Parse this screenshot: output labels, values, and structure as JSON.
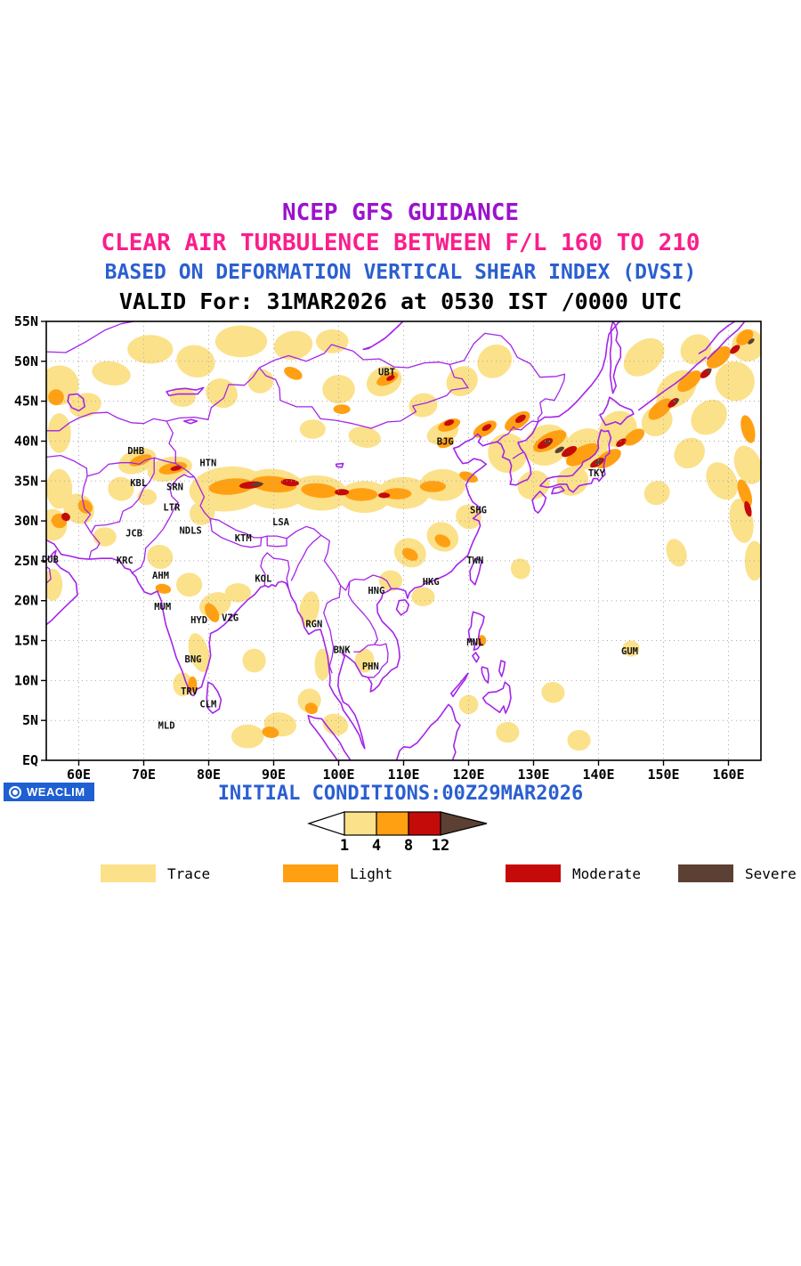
{
  "titles": {
    "line1": "NCEP GFS GUIDANCE",
    "line2": "CLEAR AIR TURBULENCE BETWEEN F/L 160 TO 210",
    "line3": "BASED ON DEFORMATION VERTICAL SHEAR INDEX (DVSI)",
    "line4": "VALID For: 31MAR2026 at 0530 IST /0000 UTC"
  },
  "footer": {
    "initial_conditions": "INITIAL CONDITIONS:00Z29MAR2026",
    "logo_text": "WEACLIM"
  },
  "colorbar": {
    "tick_labels": [
      "1",
      "4",
      "8",
      "12"
    ]
  },
  "legend": {
    "items": [
      {
        "label": "Trace",
        "color": "#FBE18A"
      },
      {
        "label": "Light",
        "color": "#FFA013"
      },
      {
        "label": "Moderate",
        "color": "#C50A0A"
      },
      {
        "label": "Severe",
        "color": "#5C4033"
      }
    ]
  },
  "colors": {
    "title1": "#9B12CC",
    "title2": "#FA1E8C",
    "title3": "#2B5FD0",
    "title4": "#000000",
    "footer_blue": "#2B5FD0",
    "logo_bg": "#1E5FD1"
  },
  "map": {
    "lon_range": [
      55,
      165
    ],
    "lat_range": [
      0,
      55
    ],
    "lon_tick_labels": [
      "60E",
      "70E",
      "80E",
      "90E",
      "100E",
      "110E",
      "120E",
      "130E",
      "140E",
      "150E",
      "160E"
    ],
    "lat_tick_labels": [
      "EQ",
      "5N",
      "10N",
      "15N",
      "20N",
      "25N",
      "30N",
      "35N",
      "40N",
      "45N",
      "50N",
      "55N"
    ],
    "colors": {
      "coastline": "#A425E8",
      "grid": "#aaaaaa",
      "trace": "#FBE18A",
      "light": "#FFA013",
      "moderate": "#C50A0A",
      "severe": "#5C4033"
    },
    "stations": [
      {
        "code": "UBT",
        "lon": 107.4,
        "lat": 48.6
      },
      {
        "code": "BJG",
        "lon": 116.4,
        "lat": 39.9
      },
      {
        "code": "TKY",
        "lon": 139.7,
        "lat": 35.9
      },
      {
        "code": "SHG",
        "lon": 121.5,
        "lat": 31.3
      },
      {
        "code": "TWN",
        "lon": 121.0,
        "lat": 25.0
      },
      {
        "code": "HKG",
        "lon": 114.2,
        "lat": 22.3
      },
      {
        "code": "HNG",
        "lon": 105.8,
        "lat": 21.2
      },
      {
        "code": "MNL",
        "lon": 121.0,
        "lat": 14.7
      },
      {
        "code": "GUM",
        "lon": 144.8,
        "lat": 13.6
      },
      {
        "code": "DHB",
        "lon": 68.8,
        "lat": 38.7
      },
      {
        "code": "HTN",
        "lon": 79.9,
        "lat": 37.2
      },
      {
        "code": "KBL",
        "lon": 69.2,
        "lat": 34.7
      },
      {
        "code": "SRN",
        "lon": 74.8,
        "lat": 34.2
      },
      {
        "code": "LTR",
        "lon": 74.3,
        "lat": 31.6
      },
      {
        "code": "JCB",
        "lon": 68.5,
        "lat": 28.4
      },
      {
        "code": "NDLS",
        "lon": 77.2,
        "lat": 28.7
      },
      {
        "code": "KTM",
        "lon": 85.3,
        "lat": 27.8
      },
      {
        "code": "LSA",
        "lon": 91.1,
        "lat": 29.8
      },
      {
        "code": "KRC",
        "lon": 67.1,
        "lat": 25.0
      },
      {
        "code": "AHM",
        "lon": 72.6,
        "lat": 23.1
      },
      {
        "code": "DUB",
        "lon": 55.6,
        "lat": 25.1
      },
      {
        "code": "MUM",
        "lon": 72.9,
        "lat": 19.2
      },
      {
        "code": "KOL",
        "lon": 88.4,
        "lat": 22.7
      },
      {
        "code": "HYD",
        "lon": 78.5,
        "lat": 17.5
      },
      {
        "code": "VZG",
        "lon": 83.3,
        "lat": 17.8
      },
      {
        "code": "BNG",
        "lon": 77.6,
        "lat": 12.6
      },
      {
        "code": "RGN",
        "lon": 96.2,
        "lat": 17.0
      },
      {
        "code": "BNK",
        "lon": 100.5,
        "lat": 13.8
      },
      {
        "code": "PHN",
        "lon": 104.9,
        "lat": 11.7
      },
      {
        "code": "TRV",
        "lon": 77.0,
        "lat": 8.6
      },
      {
        "code": "CLM",
        "lon": 79.9,
        "lat": 7.0
      },
      {
        "code": "MLD",
        "lon": 73.5,
        "lat": 4.3
      }
    ]
  }
}
